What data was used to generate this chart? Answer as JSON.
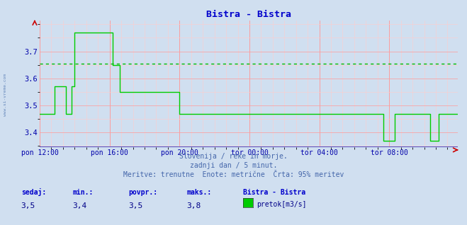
{
  "title": "Bistra - Bistra",
  "title_color": "#0000cc",
  "bg_color": "#d0dff0",
  "plot_bg_color": "#d0dff0",
  "grid_color_major": "#ff9999",
  "grid_color_minor": "#ffcccc",
  "line_color": "#00cc00",
  "avg_line_color": "#00bb00",
  "avg_value": 3.655,
  "ylim": [
    3.345,
    3.815
  ],
  "yticks": [
    3.4,
    3.5,
    3.6,
    3.7
  ],
  "ylabel_color": "#0000aa",
  "xlabel_color": "#0000aa",
  "xtick_labels": [
    "pon 12:00",
    "pon 16:00",
    "pon 20:00",
    "tor 00:00",
    "tor 04:00",
    "tor 08:00"
  ],
  "xtick_positions": [
    0,
    48,
    96,
    144,
    192,
    240
  ],
  "total_points": 288,
  "subtitle1": "Slovenija / reke in morje.",
  "subtitle2": "zadnji dan / 5 minut.",
  "subtitle3": "Meritve: trenutne  Enote: metrične  Črta: 95% meritev",
  "subtitle_color": "#4466aa",
  "stat_label_color": "#0000cc",
  "stat_value_color": "#000088",
  "sedaj": "3,5",
  "min_val": "3,4",
  "povpr": "3,5",
  "maks": "3,8",
  "legend_label": "pretok[m3/s]",
  "legend_series": "Bistra - Bistra",
  "left_label": "www.si-vreme.com",
  "left_label_color": "#6688bb"
}
